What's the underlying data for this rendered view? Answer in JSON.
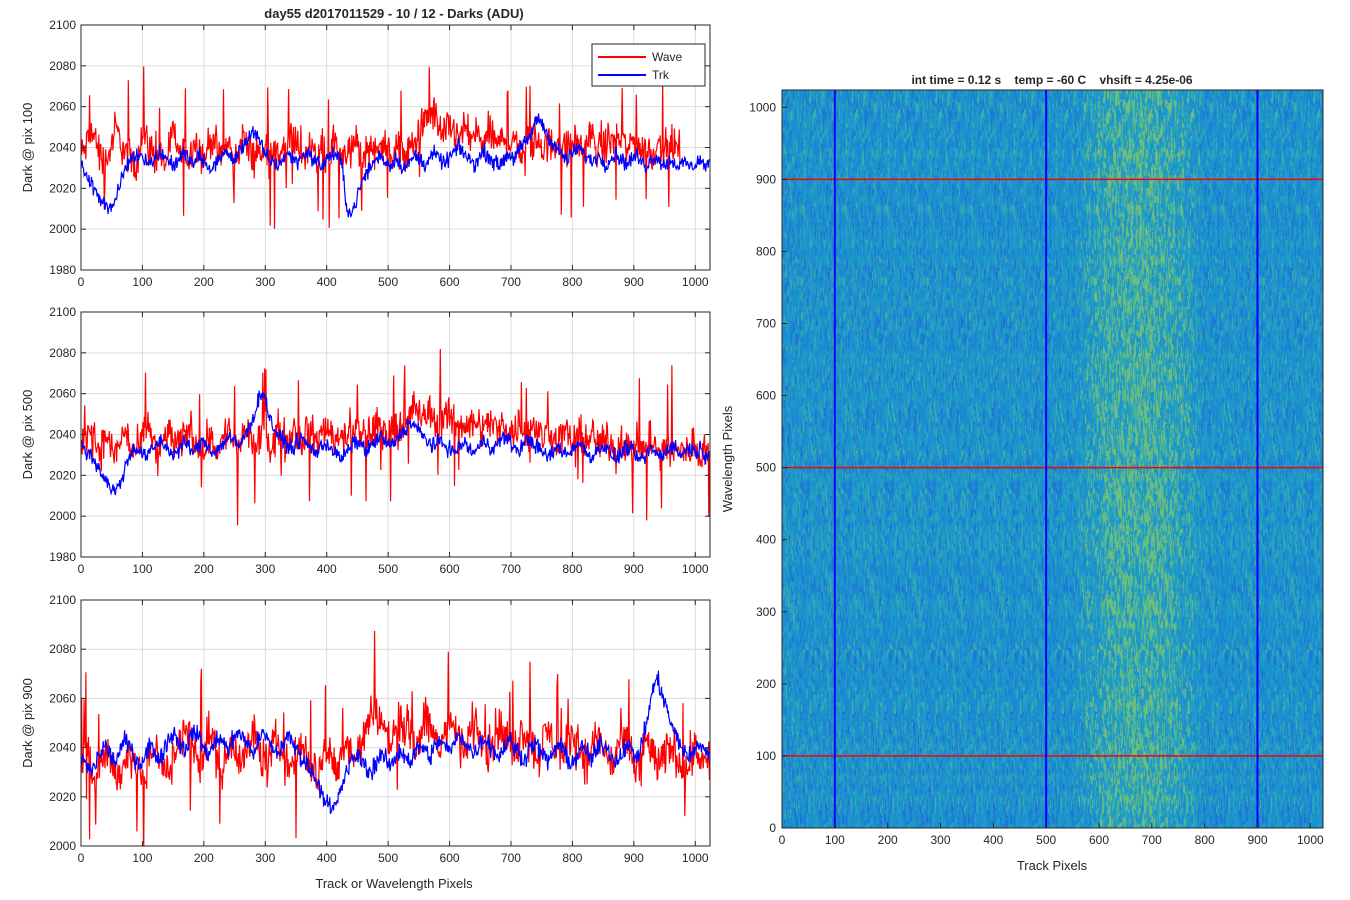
{
  "figure": {
    "title": "day55 d2017011529 - 10 / 12 - Darks (ADU)",
    "common_xlabel": "Track or Wavelength Pixels"
  },
  "legend": {
    "entries": [
      "Wave",
      "Trk"
    ],
    "position": "top-right"
  },
  "colors": {
    "wave": "#ff0000",
    "trk": "#0000ff",
    "grid": "#dcdcdc",
    "axis": "#262626"
  },
  "chart_data": [
    {
      "type": "line",
      "ylabel": "Dark @ pix 100",
      "xlim": [
        0,
        1024
      ],
      "ylim": [
        1980,
        2100
      ],
      "xticks": [
        0,
        100,
        200,
        300,
        400,
        500,
        600,
        700,
        800,
        900,
        1000
      ],
      "yticks": [
        1980,
        2000,
        2020,
        2040,
        2060,
        2080,
        2100
      ],
      "grid": true,
      "series": [
        {
          "name": "Wave",
          "x_start": 0,
          "x_step": 8,
          "values": [
            2036,
            2040,
            2048,
            2044,
            2035,
            2033,
            2039,
            2050,
            2043,
            2037,
            2035,
            2031,
            2042,
            2046,
            2040,
            2034,
            2037,
            2031,
            2041,
            2048,
            2036,
            2038,
            2034,
            2044,
            2040,
            2034,
            2041,
            2047,
            2033,
            2037,
            2044,
            2032,
            2039,
            2046,
            2038,
            2035,
            2041,
            2033,
            2045,
            2039,
            2034,
            2042,
            2036,
            2047,
            2040,
            2033,
            2039,
            2044,
            2036,
            2041,
            2034,
            2038,
            2043,
            2035,
            2040,
            2037,
            2044,
            2032,
            2039,
            2042,
            2036,
            2045,
            2041,
            2038,
            2037,
            2041,
            2035,
            2039,
            2043,
            2048,
            2052,
            2055,
            2057,
            2049,
            2046,
            2050,
            2047,
            2044,
            2051,
            2043,
            2047,
            2045,
            2041,
            2048,
            2044,
            2041,
            2045,
            2042,
            2046,
            2040,
            2038,
            2044,
            2041,
            2045,
            2039,
            2042,
            2040,
            2044,
            2041,
            2038,
            2045,
            2042,
            2039,
            2043,
            2046,
            2040,
            2037,
            2044,
            2041,
            2047,
            2043,
            2039,
            2042,
            2045,
            2038,
            2041,
            2036,
            2040,
            2043,
            2039,
            2042,
            2040,
            2038
          ]
        },
        {
          "name": "Trk",
          "x_start": 0,
          "x_step": 8,
          "values": [
            2030,
            2028,
            2022,
            2018,
            2015,
            2013,
            2010,
            2014,
            2022,
            2030,
            2034,
            2036,
            2037,
            2035,
            2032,
            2034,
            2038,
            2036,
            2033,
            2031,
            2035,
            2037,
            2034,
            2032,
            2036,
            2033,
            2029,
            2031,
            2034,
            2038,
            2036,
            2034,
            2037,
            2041,
            2045,
            2048,
            2044,
            2039,
            2035,
            2033,
            2031,
            2034,
            2037,
            2035,
            2033,
            2036,
            2038,
            2035,
            2033,
            2031,
            2034,
            2037,
            2036,
            2033,
            2012,
            2007,
            2014,
            2022,
            2027,
            2031,
            2034,
            2036,
            2033,
            2031,
            2035,
            2032,
            2030,
            2033,
            2036,
            2034,
            2032,
            2035,
            2037,
            2034,
            2032,
            2035,
            2038,
            2040,
            2037,
            2034,
            2032,
            2035,
            2038,
            2036,
            2033,
            2031,
            2034,
            2037,
            2035,
            2038,
            2041,
            2044,
            2049,
            2055,
            2051,
            2046,
            2042,
            2039,
            2036,
            2034,
            2037,
            2040,
            2038,
            2035,
            2033,
            2036,
            2034,
            2032,
            2035,
            2037,
            2034,
            2032,
            2034,
            2036,
            2033,
            2031,
            2034,
            2036,
            2033,
            2031,
            2034,
            2032,
            2031,
            2033,
            2030,
            2032,
            2034,
            2031,
            2033
          ]
        }
      ]
    },
    {
      "type": "line",
      "ylabel": "Dark @ pix 500",
      "xlim": [
        0,
        1024
      ],
      "ylim": [
        1980,
        2100
      ],
      "xticks": [
        0,
        100,
        200,
        300,
        400,
        500,
        600,
        700,
        800,
        900,
        1000
      ],
      "yticks": [
        1980,
        2000,
        2020,
        2040,
        2060,
        2080,
        2100
      ],
      "grid": true,
      "series": [
        {
          "name": "Wave",
          "x_start": 0,
          "x_step": 8,
          "values": [
            2030,
            2038,
            2044,
            2036,
            2032,
            2040,
            2034,
            2030,
            2037,
            2042,
            2035,
            2031,
            2034,
            2040,
            2044,
            2036,
            2032,
            2038,
            2042,
            2035,
            2033,
            2039,
            2045,
            2038,
            2034,
            2031,
            2040,
            2036,
            2032,
            2038,
            2043,
            2036,
            2033,
            2039,
            2041,
            2037,
            2034,
            2041,
            2038,
            2035,
            2042,
            2039,
            2036,
            2044,
            2040,
            2037,
            2043,
            2039,
            2036,
            2041,
            2045,
            2040,
            2037,
            2042,
            2039,
            2044,
            2041,
            2038,
            2043,
            2040,
            2045,
            2042,
            2039,
            2044,
            2041,
            2047,
            2043,
            2050,
            2055,
            2049,
            2046,
            2052,
            2048,
            2045,
            2051,
            2047,
            2044,
            2049,
            2046,
            2043,
            2048,
            2045,
            2042,
            2047,
            2044,
            2041,
            2046,
            2043,
            2040,
            2045,
            2042,
            2039,
            2044,
            2041,
            2038,
            2043,
            2040,
            2037,
            2042,
            2039,
            2036,
            2041,
            2038,
            2035,
            2040,
            2037,
            2034,
            2039,
            2036,
            2033,
            2038,
            2035,
            2032,
            2037,
            2034,
            2031,
            2036,
            2033,
            2030,
            2035,
            2032,
            2029,
            2034,
            2031,
            2033,
            2036,
            2030,
            2034,
            2032
          ]
        },
        {
          "name": "Trk",
          "x_start": 0,
          "x_step": 8,
          "values": [
            2035,
            2032,
            2030,
            2026,
            2022,
            2018,
            2014,
            2012,
            2016,
            2024,
            2030,
            2034,
            2032,
            2029,
            2031,
            2034,
            2037,
            2035,
            2032,
            2030,
            2033,
            2036,
            2034,
            2031,
            2035,
            2037,
            2034,
            2031,
            2033,
            2036,
            2039,
            2037,
            2034,
            2038,
            2042,
            2048,
            2056,
            2062,
            2052,
            2044,
            2040,
            2037,
            2035,
            2033,
            2036,
            2038,
            2035,
            2033,
            2031,
            2034,
            2036,
            2033,
            2030,
            2028,
            2031,
            2034,
            2037,
            2035,
            2032,
            2034,
            2037,
            2039,
            2036,
            2034,
            2037,
            2040,
            2043,
            2046,
            2044,
            2041,
            2038,
            2036,
            2034,
            2037,
            2035,
            2033,
            2031,
            2034,
            2036,
            2033,
            2031,
            2034,
            2037,
            2035,
            2033,
            2036,
            2039,
            2037,
            2034,
            2032,
            2035,
            2038,
            2036,
            2033,
            2031,
            2029,
            2031,
            2034,
            2032,
            2030,
            2033,
            2036,
            2034,
            2031,
            2029,
            2032,
            2035,
            2033,
            2030,
            2028,
            2031,
            2034,
            2032,
            2029,
            2027,
            2030,
            2033,
            2031,
            2029,
            2032,
            2035,
            2033,
            2030,
            2032,
            2034,
            2031,
            2033,
            2030,
            2032
          ]
        }
      ]
    },
    {
      "type": "line",
      "ylabel": "Dark @ pix 900",
      "xlim": [
        0,
        1024
      ],
      "ylim": [
        2000,
        2100
      ],
      "xticks": [
        0,
        100,
        200,
        300,
        400,
        500,
        600,
        700,
        800,
        900,
        1000
      ],
      "yticks": [
        2000,
        2020,
        2040,
        2060,
        2080,
        2100
      ],
      "xlabel": "Track or Wavelength Pixels",
      "grid": true,
      "series": [
        {
          "name": "Wave",
          "x_start": 0,
          "x_step": 8,
          "values": [
            2034,
            2038,
            2030,
            2026,
            2033,
            2040,
            2036,
            2030,
            2027,
            2034,
            2040,
            2035,
            2030,
            2028,
            2035,
            2041,
            2037,
            2032,
            2029,
            2036,
            2043,
            2049,
            2044,
            2039,
            2034,
            2040,
            2046,
            2041,
            2036,
            2032,
            2039,
            2044,
            2038,
            2034,
            2040,
            2046,
            2041,
            2036,
            2033,
            2039,
            2044,
            2038,
            2034,
            2031,
            2037,
            2042,
            2036,
            2032,
            2029,
            2035,
            2040,
            2034,
            2031,
            2037,
            2043,
            2039,
            2035,
            2041,
            2047,
            2052,
            2056,
            2050,
            2046,
            2042,
            2048,
            2053,
            2049,
            2045,
            2041,
            2047,
            2052,
            2048,
            2044,
            2040,
            2046,
            2051,
            2047,
            2043,
            2039,
            2045,
            2050,
            2046,
            2042,
            2038,
            2044,
            2049,
            2045,
            2041,
            2037,
            2043,
            2048,
            2044,
            2040,
            2036,
            2042,
            2047,
            2043,
            2039,
            2035,
            2041,
            2046,
            2042,
            2038,
            2034,
            2040,
            2045,
            2041,
            2037,
            2033,
            2039,
            2044,
            2040,
            2036,
            2032,
            2038,
            2043,
            2039,
            2035,
            2031,
            2037,
            2042,
            2038,
            2034,
            2030,
            2036,
            2041,
            2037,
            2033,
            2035
          ]
        },
        {
          "name": "Trk",
          "x_start": 0,
          "x_step": 8,
          "values": [
            2036,
            2033,
            2030,
            2034,
            2038,
            2041,
            2037,
            2034,
            2039,
            2043,
            2040,
            2036,
            2033,
            2037,
            2041,
            2038,
            2035,
            2040,
            2044,
            2046,
            2042,
            2039,
            2043,
            2047,
            2044,
            2040,
            2037,
            2041,
            2045,
            2042,
            2039,
            2043,
            2047,
            2044,
            2041,
            2038,
            2042,
            2046,
            2043,
            2040,
            2037,
            2041,
            2045,
            2042,
            2039,
            2036,
            2033,
            2030,
            2027,
            2022,
            2018,
            2014,
            2017,
            2024,
            2030,
            2034,
            2037,
            2035,
            2032,
            2030,
            2034,
            2037,
            2035,
            2032,
            2036,
            2039,
            2037,
            2034,
            2038,
            2041,
            2039,
            2036,
            2040,
            2043,
            2041,
            2038,
            2042,
            2045,
            2043,
            2040,
            2037,
            2041,
            2044,
            2042,
            2039,
            2036,
            2040,
            2043,
            2041,
            2038,
            2035,
            2039,
            2042,
            2040,
            2037,
            2034,
            2038,
            2041,
            2039,
            2036,
            2033,
            2037,
            2040,
            2038,
            2035,
            2039,
            2042,
            2040,
            2037,
            2034,
            2038,
            2041,
            2039,
            2036,
            2040,
            2049,
            2060,
            2068,
            2064,
            2057,
            2050,
            2045,
            2041,
            2038,
            2036,
            2039,
            2042,
            2039,
            2037
          ]
        }
      ]
    },
    {
      "type": "heatmap",
      "title": "int time = 0.12 s    temp = -60 C    vhsift = 4.25e-06",
      "xlabel": "Track Pixels",
      "ylabel": "Wavelength Pixels",
      "xlim": [
        0,
        1024
      ],
      "ylim": [
        0,
        1024
      ],
      "xticks": [
        0,
        100,
        200,
        300,
        400,
        500,
        600,
        700,
        800,
        900,
        1000
      ],
      "yticks": [
        0,
        100,
        200,
        300,
        400,
        500,
        600,
        700,
        800,
        900,
        1000
      ],
      "colormap": "parula",
      "vertical_markers": {
        "x": [
          100,
          500,
          900
        ],
        "color": "#0000ff"
      },
      "horizontal_markers": {
        "y": [
          100,
          500,
          900
        ],
        "color": "#ff0000"
      },
      "bright_band_x": [
        550,
        800
      ]
    }
  ]
}
